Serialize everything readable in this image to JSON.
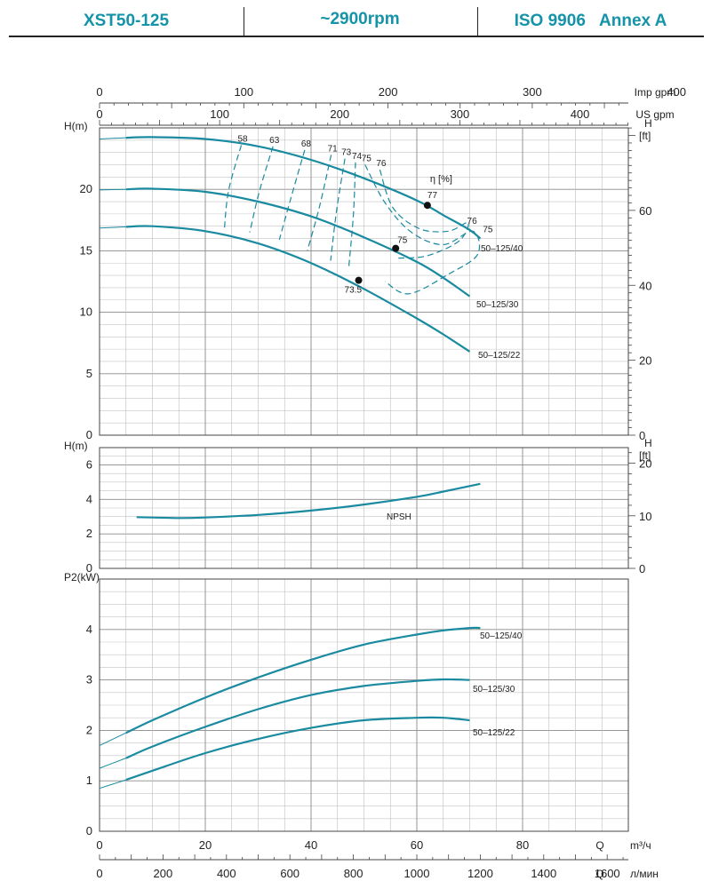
{
  "header": {
    "model": "XST50-125",
    "speed": "~2900rpm",
    "standard": "ISO 9906   Annex A"
  },
  "chart_data": {
    "type": "line",
    "x_axes": {
      "imp_gpm": {
        "label": "Imp gpm",
        "ticks": [
          0,
          100,
          200,
          300,
          400
        ]
      },
      "us_gpm": {
        "label": "US gpm",
        "ticks": [
          0,
          100,
          200,
          300,
          400
        ]
      },
      "m3h": {
        "label": "m³/ч",
        "symbol": "Q",
        "ticks": [
          0,
          20,
          40,
          60,
          80
        ],
        "range": [
          0,
          100
        ]
      },
      "lmin": {
        "label": "л/мин",
        "symbol": "Q",
        "ticks": [
          0,
          200,
          400,
          600,
          800,
          1000,
          1200,
          1400,
          1600
        ]
      }
    },
    "panels": [
      {
        "id": "head",
        "ylabel": "H(m)",
        "ylabel_right": "H\n[ft]",
        "yticks": [
          0,
          5,
          10,
          15,
          20
        ],
        "yticks_right": [
          0,
          20,
          40,
          60
        ],
        "ylim": [
          0,
          25
        ],
        "series": [
          {
            "name": "50-125/40",
            "x": [
              0,
              5,
              10,
              20,
              30,
              40,
              50,
              60,
              65,
              70,
              72
            ],
            "y": [
              24.1,
              24.2,
              24.25,
              24.1,
              23.5,
              22.4,
              20.9,
              19.1,
              17.9,
              16.7,
              16.0
            ]
          },
          {
            "name": "50-125/30",
            "x": [
              0,
              5,
              10,
              20,
              30,
              40,
              50,
              60,
              65,
              70
            ],
            "y": [
              19.95,
              20.0,
              20.05,
              19.8,
              19.0,
              17.8,
              16.1,
              14.1,
              12.8,
              11.3
            ]
          },
          {
            "name": "50-125/22",
            "x": [
              0,
              5,
              10,
              20,
              30,
              40,
              50,
              60,
              65,
              70
            ],
            "y": [
              16.85,
              16.95,
              17.0,
              16.6,
              15.6,
              14.0,
              11.9,
              9.5,
              8.2,
              6.8
            ]
          }
        ],
        "efficiency": {
          "label": "η [%]",
          "bep_points": [
            {
              "x": 62,
              "y": 18.7,
              "label": "77"
            },
            {
              "x": 56,
              "y": 15.2,
              "label": "75"
            },
            {
              "x": 49,
              "y": 12.6,
              "label": "73.5"
            }
          ],
          "iso_lines": [
            {
              "label": "58",
              "x": [
                26.8,
                24.4,
                23.6
              ],
              "y": [
                23.6,
                19.9,
                16.7
              ]
            },
            {
              "label": "63",
              "x": [
                32.8,
                30.2,
                28.4
              ],
              "y": [
                23.5,
                19.8,
                16.5
              ]
            },
            {
              "label": "68",
              "x": [
                38.8,
                36.2,
                34.0
              ],
              "y": [
                23.2,
                19.3,
                15.9
              ]
            },
            {
              "label": "71",
              "x": [
                43.8,
                41.6,
                39.3
              ],
              "y": [
                22.8,
                18.6,
                15.0
              ]
            },
            {
              "label": "73",
              "x": [
                46.4,
                44.8,
                43.7
              ],
              "y": [
                22.5,
                18.2,
                14.2
              ]
            },
            {
              "label": "74",
              "x": [
                48.4,
                48.0,
                47.1
              ],
              "y": [
                22.2,
                17.9,
                13.5
              ]
            },
            {
              "label": "75",
              "x": [
                50.2,
                54.0,
                59.0,
                65.0,
                70.6,
                71.5,
                66.0,
                58.5,
                54.0
              ],
              "y": [
                22.0,
                18.9,
                16.5,
                15.5,
                16.6,
                14.7,
                13.1,
                11.5,
                12.5
              ]
            },
            {
              "label": "76",
              "x": [
                53.0,
                55.5,
                60.5,
                66.0,
                69.7,
                68.0,
                62.0,
                56.5
              ],
              "y": [
                21.6,
                18.5,
                16.8,
                16.6,
                17.3,
                15.8,
                14.6,
                14.4
              ]
            }
          ],
          "side_labels": [
            {
              "label": "76",
              "x": 69.5,
              "y": 17.2
            },
            {
              "label": "75",
              "x": 72.5,
              "y": 16.5
            }
          ]
        }
      },
      {
        "id": "npsh",
        "ylabel": "H(m)",
        "ylabel_right": "H\n[ft]",
        "yticks": [
          0,
          2,
          4,
          6
        ],
        "yticks_right": [
          0,
          10,
          20
        ],
        "ylim": [
          0,
          7
        ],
        "series": [
          {
            "name": "NPSH",
            "x": [
              0,
              7,
              10,
              15,
              20,
              30,
              40,
              50,
              60,
              65,
              72
            ],
            "y": [
              3.0,
              2.97,
              2.95,
              2.92,
              2.95,
              3.1,
              3.35,
              3.7,
              4.15,
              4.45,
              4.9
            ]
          }
        ]
      },
      {
        "id": "power",
        "ylabel": "P2(kW)",
        "yticks": [
          0,
          1,
          2,
          3,
          4
        ],
        "ylim": [
          0,
          5
        ],
        "series": [
          {
            "name": "50-125/40",
            "x": [
              0,
              5,
              10,
              20,
              30,
              40,
              50,
              60,
              65,
              70,
              72
            ],
            "y": [
              1.7,
              1.95,
              2.2,
              2.65,
              3.05,
              3.4,
              3.7,
              3.9,
              3.98,
              4.03,
              4.03
            ]
          },
          {
            "name": "50-125/30",
            "x": [
              0,
              5,
              10,
              20,
              30,
              40,
              50,
              60,
              65,
              70
            ],
            "y": [
              1.25,
              1.45,
              1.68,
              2.07,
              2.42,
              2.7,
              2.88,
              2.98,
              3.01,
              3.0
            ]
          },
          {
            "name": "50-125/22",
            "x": [
              0,
              5,
              10,
              20,
              30,
              40,
              50,
              60,
              65,
              70
            ],
            "y": [
              0.85,
              1.02,
              1.2,
              1.55,
              1.83,
              2.05,
              2.2,
              2.25,
              2.25,
              2.2
            ]
          }
        ]
      }
    ],
    "colors": {
      "curve": "#1a8aa0",
      "grid": "#9a9a9a",
      "text": "#222222"
    }
  }
}
